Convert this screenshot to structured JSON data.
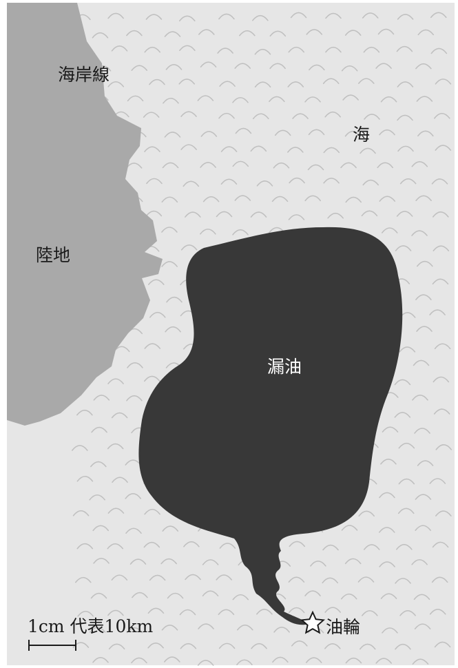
{
  "labels": {
    "coastline": "海岸線",
    "sea": "海",
    "land": "陸地",
    "oil_spill": "漏油",
    "tanker": "油輪"
  },
  "scale": {
    "text": "1cm 代表10km"
  },
  "icons": {
    "tanker_marker": "star-outline-icon"
  },
  "colors": {
    "sea": "#e6e6e6",
    "land": "#a9a9a9",
    "oil": "#383838",
    "wave": "#c0c0c0",
    "text": "#1a1a1a",
    "text_on_oil": "#ffffff"
  }
}
